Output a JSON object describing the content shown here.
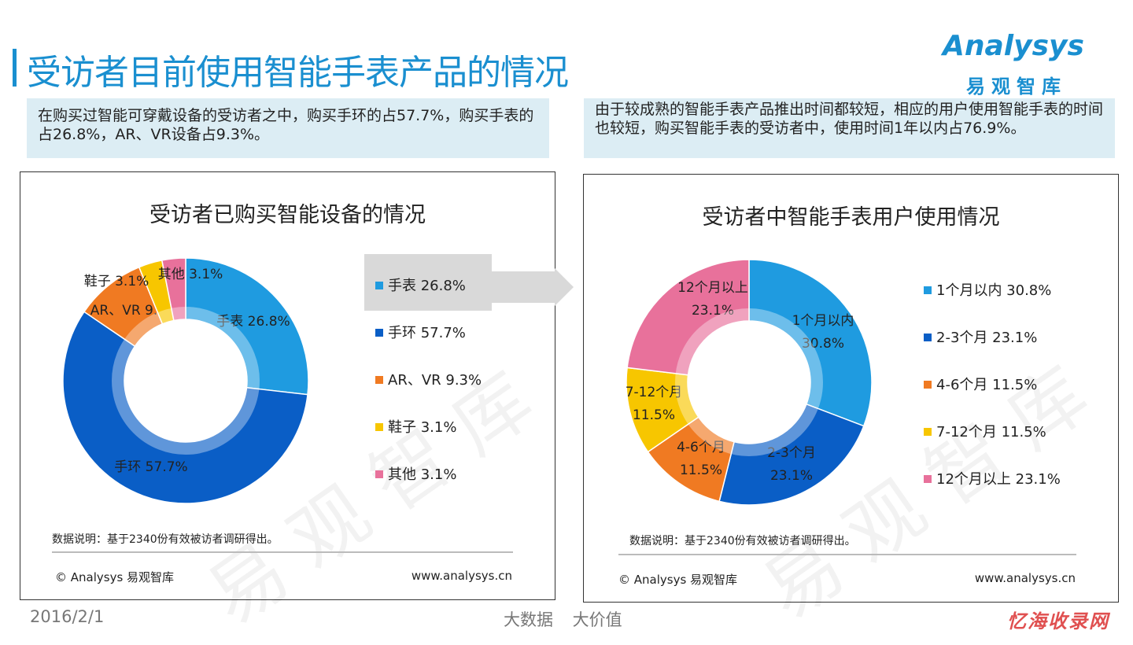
{
  "header": {
    "title": "受访者目前使用智能手表产品的情况",
    "logo_en": "Analysys",
    "logo_cn": "易观智库"
  },
  "notes": {
    "left": "在购买过智能可穿戴设备的受访者之中，购买手环的占57.7%，购买手表的占26.8%，AR、VR设备占9.3%。",
    "right": "由于较成熟的智能手表产品推出时间都较短，相应的用户使用智能手表的时间也较短，购买智能手表的受访者中，使用时间1年以内占76.9%。"
  },
  "chart_data": [
    {
      "type": "pie",
      "donut": true,
      "title": "受访者已购买智能设备的情况",
      "categories": [
        "手表",
        "手环",
        "AR、VR",
        "鞋子",
        "其他"
      ],
      "values": [
        26.8,
        57.7,
        9.3,
        3.1,
        3.1
      ],
      "labels": [
        "手表  26.8%",
        "手环  57.7%",
        "AR、VR  9.3%",
        "鞋子  3.1%",
        "其他  3.1%"
      ],
      "colors": [
        "#1f9be0",
        "#0a5ec6",
        "#f07a22",
        "#f7c600",
        "#e8719b"
      ],
      "legend_position": "right",
      "highlighted": "手表"
    },
    {
      "type": "pie",
      "donut": true,
      "title": "受访者中智能手表用户使用情况",
      "categories": [
        "1个月以内",
        "2-3个月",
        "4-6个月",
        "7-12个月",
        "12个月以上"
      ],
      "values": [
        30.8,
        23.1,
        11.5,
        11.5,
        23.1
      ],
      "labels": [
        "1个月以内  30.8%",
        "2-3个月  23.1%",
        "4-6个月  11.5%",
        "7-12个月  11.5%",
        "12个月以上  23.1%"
      ],
      "colors": [
        "#1f9be0",
        "#0a5ec6",
        "#f07a22",
        "#f7c600",
        "#e8719b"
      ],
      "legend_position": "right"
    }
  ],
  "panels": {
    "source": "数据说明：基于2340份有效被访者调研得出。",
    "copyright": "© Analysys 易观智库",
    "url": "www.analysys.cn",
    "watermark": "易观智库"
  },
  "footer": {
    "date": "2016/2/1",
    "slogan": "大数据 大价值",
    "brand": "忆海收录网"
  }
}
